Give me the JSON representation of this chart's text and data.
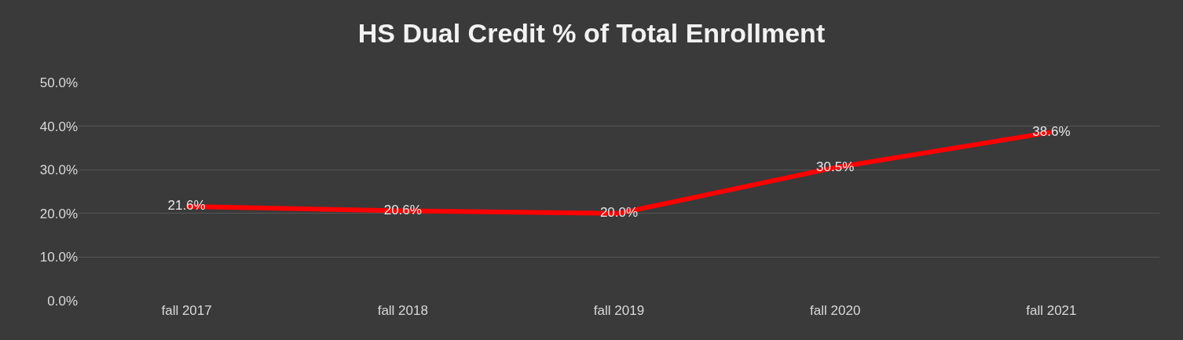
{
  "chart_data": {
    "type": "line",
    "title": "HS Dual Credit % of Total Enrollment",
    "categories": [
      "fall 2017",
      "fall 2018",
      "fall 2019",
      "fall 2020",
      "fall 2021"
    ],
    "series": [
      {
        "color": "#ff0000",
        "values": [
          21.6,
          20.6,
          20.0,
          30.5,
          38.6
        ],
        "value_labels": [
          "21.6%",
          "20.6%",
          "20.0%",
          "30.5%",
          "38.6%"
        ]
      }
    ],
    "ylim": [
      0,
      50
    ],
    "yticks": [
      {
        "value": 0,
        "label": "0.0%"
      },
      {
        "value": 10,
        "label": "10.0%"
      },
      {
        "value": 20,
        "label": "20.0%"
      },
      {
        "value": 30,
        "label": "30.0%"
      },
      {
        "value": 40,
        "label": "40.0%"
      },
      {
        "value": 50,
        "label": "50.0%"
      }
    ],
    "grid": "y",
    "line_style": "solid"
  }
}
